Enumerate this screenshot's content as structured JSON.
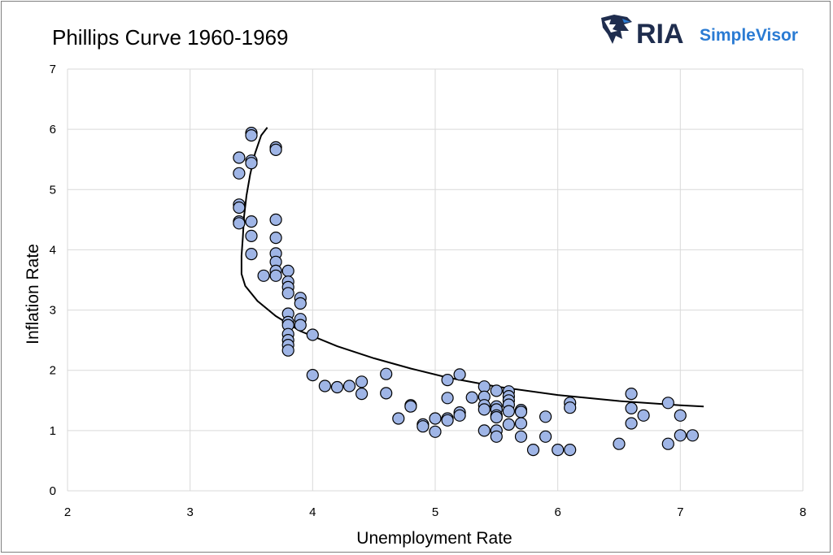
{
  "chart_data": {
    "type": "scatter",
    "title": "Phillips Curve 1960-1969",
    "xlabel": "Unemployment Rate",
    "ylabel": "Inflation Rate",
    "xlim": [
      2,
      8
    ],
    "ylim": [
      0,
      7
    ],
    "xticks": [
      "2",
      "3",
      "4",
      "5",
      "6",
      "7",
      "8"
    ],
    "yticks": [
      "0",
      "1",
      "2",
      "3",
      "4",
      "5",
      "6",
      "7"
    ],
    "grid": "vertical and horizontal",
    "marker_color": "#9fb5e6",
    "marker_edge_color": "#000000",
    "trend_color": "#000000",
    "points": [
      [
        3.4,
        5.53
      ],
      [
        3.4,
        5.27
      ],
      [
        3.4,
        4.75
      ],
      [
        3.4,
        4.7
      ],
      [
        3.4,
        4.47
      ],
      [
        3.4,
        4.44
      ],
      [
        3.5,
        5.94
      ],
      [
        3.5,
        5.9
      ],
      [
        3.5,
        5.48
      ],
      [
        3.5,
        5.44
      ],
      [
        3.5,
        4.47
      ],
      [
        3.5,
        4.23
      ],
      [
        3.5,
        3.93
      ],
      [
        3.6,
        3.57
      ],
      [
        3.7,
        5.7
      ],
      [
        3.7,
        5.66
      ],
      [
        3.7,
        4.5
      ],
      [
        3.7,
        4.2
      ],
      [
        3.7,
        3.94
      ],
      [
        3.7,
        3.8
      ],
      [
        3.7,
        3.65
      ],
      [
        3.7,
        3.57
      ],
      [
        3.8,
        3.65
      ],
      [
        3.8,
        3.47
      ],
      [
        3.8,
        3.38
      ],
      [
        3.8,
        3.28
      ],
      [
        3.8,
        2.94
      ],
      [
        3.8,
        2.8
      ],
      [
        3.8,
        2.75
      ],
      [
        3.8,
        2.6
      ],
      [
        3.8,
        2.5
      ],
      [
        3.8,
        2.42
      ],
      [
        3.8,
        2.33
      ],
      [
        3.9,
        3.2
      ],
      [
        3.9,
        3.11
      ],
      [
        3.9,
        2.85
      ],
      [
        3.9,
        2.75
      ],
      [
        4.0,
        2.59
      ],
      [
        4.0,
        1.92
      ],
      [
        4.1,
        1.74
      ],
      [
        4.2,
        1.72
      ],
      [
        4.3,
        1.74
      ],
      [
        4.4,
        1.81
      ],
      [
        4.4,
        1.61
      ],
      [
        4.6,
        1.94
      ],
      [
        4.6,
        1.62
      ],
      [
        4.7,
        1.2
      ],
      [
        4.8,
        1.42
      ],
      [
        4.8,
        1.4
      ],
      [
        4.9,
        1.1
      ],
      [
        4.9,
        1.07
      ],
      [
        5.0,
        1.2
      ],
      [
        5.0,
        0.98
      ],
      [
        5.1,
        1.84
      ],
      [
        5.1,
        1.54
      ],
      [
        5.1,
        1.2
      ],
      [
        5.1,
        1.17
      ],
      [
        5.2,
        1.93
      ],
      [
        5.2,
        1.3
      ],
      [
        5.2,
        1.25
      ],
      [
        5.3,
        1.55
      ],
      [
        5.4,
        1.73
      ],
      [
        5.4,
        1.56
      ],
      [
        5.4,
        1.42
      ],
      [
        5.4,
        1.35
      ],
      [
        5.4,
        1.0
      ],
      [
        5.5,
        1.66
      ],
      [
        5.5,
        1.4
      ],
      [
        5.5,
        1.35
      ],
      [
        5.5,
        1.25
      ],
      [
        5.5,
        1.22
      ],
      [
        5.5,
        1.0
      ],
      [
        5.5,
        0.9
      ],
      [
        5.6,
        1.65
      ],
      [
        5.6,
        1.57
      ],
      [
        5.6,
        1.5
      ],
      [
        5.6,
        1.43
      ],
      [
        5.6,
        1.32
      ],
      [
        5.6,
        1.1
      ],
      [
        5.7,
        1.34
      ],
      [
        5.7,
        1.31
      ],
      [
        5.7,
        1.12
      ],
      [
        5.7,
        0.9
      ],
      [
        5.8,
        0.68
      ],
      [
        5.9,
        1.23
      ],
      [
        5.9,
        0.9
      ],
      [
        6.0,
        0.68
      ],
      [
        6.1,
        1.46
      ],
      [
        6.1,
        1.38
      ],
      [
        6.1,
        0.68
      ],
      [
        6.5,
        0.78
      ],
      [
        6.6,
        1.61
      ],
      [
        6.6,
        1.37
      ],
      [
        6.6,
        1.12
      ],
      [
        6.7,
        1.25
      ],
      [
        6.9,
        1.46
      ],
      [
        6.9,
        0.78
      ],
      [
        7.0,
        1.25
      ],
      [
        7.0,
        0.92
      ],
      [
        7.1,
        0.92
      ]
    ],
    "trendline": [
      [
        3.63,
        6.03
      ],
      [
        3.58,
        5.9
      ],
      [
        3.53,
        5.6
      ],
      [
        3.49,
        5.25
      ],
      [
        3.46,
        4.9
      ],
      [
        3.44,
        4.55
      ],
      [
        3.43,
        4.2
      ],
      [
        3.42,
        3.9
      ],
      [
        3.42,
        3.6
      ],
      [
        3.45,
        3.4
      ],
      [
        3.55,
        3.15
      ],
      [
        3.7,
        2.9
      ],
      [
        3.9,
        2.65
      ],
      [
        4.2,
        2.4
      ],
      [
        4.5,
        2.2
      ],
      [
        4.8,
        2.03
      ],
      [
        5.1,
        1.88
      ],
      [
        5.5,
        1.73
      ],
      [
        6.0,
        1.59
      ],
      [
        6.5,
        1.49
      ],
      [
        7.0,
        1.42
      ],
      [
        7.19,
        1.4
      ]
    ]
  },
  "logo": {
    "main": "RIA",
    "sub": "SimpleVisor",
    "primary_color": "#1f2d4e",
    "accent_color": "#2a7bd3",
    "icon": "eagle-head-icon"
  }
}
